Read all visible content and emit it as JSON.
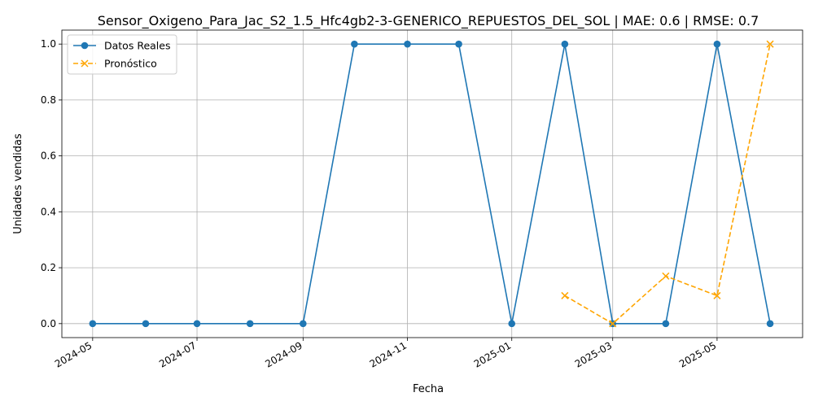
{
  "chart_data": {
    "type": "line",
    "title": "Sensor_Oxigeno_Para_Jac_S2_1.5_Hfc4gb2-3-GENERICO_REPUESTOS_DEL_SOL | MAE: 0.6 | RMSE: 0.7",
    "xlabel": "Fecha",
    "ylabel": "Unidades vendidas",
    "ylim": [
      -0.05,
      1.05
    ],
    "xlim": [
      "2024-04-13",
      "2025-06-20"
    ],
    "grid": true,
    "legend_position": "top-left",
    "x_ticks": [
      "2024-05",
      "2024-07",
      "2024-09",
      "2024-11",
      "2025-01",
      "2025-03",
      "2025-05"
    ],
    "y_ticks": [
      "0.0",
      "0.2",
      "0.4",
      "0.6",
      "0.8",
      "1.0"
    ],
    "series": [
      {
        "name": "Datos Reales",
        "color": "#1f77b4",
        "style": "solid",
        "marker": "circle",
        "points": [
          {
            "x": "2024-05-01",
            "y": 0
          },
          {
            "x": "2024-06-01",
            "y": 0
          },
          {
            "x": "2024-07-01",
            "y": 0
          },
          {
            "x": "2024-08-01",
            "y": 0
          },
          {
            "x": "2024-09-01",
            "y": 0
          },
          {
            "x": "2024-10-01",
            "y": 1
          },
          {
            "x": "2024-11-01",
            "y": 1
          },
          {
            "x": "2024-12-01",
            "y": 1
          },
          {
            "x": "2025-01-01",
            "y": 0
          },
          {
            "x": "2025-02-01",
            "y": 1
          },
          {
            "x": "2025-03-01",
            "y": 0
          },
          {
            "x": "2025-04-01",
            "y": 0
          },
          {
            "x": "2025-05-01",
            "y": 1
          },
          {
            "x": "2025-06-01",
            "y": 0
          }
        ]
      },
      {
        "name": "Pronóstico",
        "color": "#ffa500",
        "style": "dashed",
        "marker": "x",
        "points": [
          {
            "x": "2025-02-01",
            "y": 0.1
          },
          {
            "x": "2025-03-01",
            "y": 0.0
          },
          {
            "x": "2025-04-01",
            "y": 0.17
          },
          {
            "x": "2025-05-01",
            "y": 0.1
          },
          {
            "x": "2025-06-01",
            "y": 1.0
          }
        ]
      }
    ]
  }
}
